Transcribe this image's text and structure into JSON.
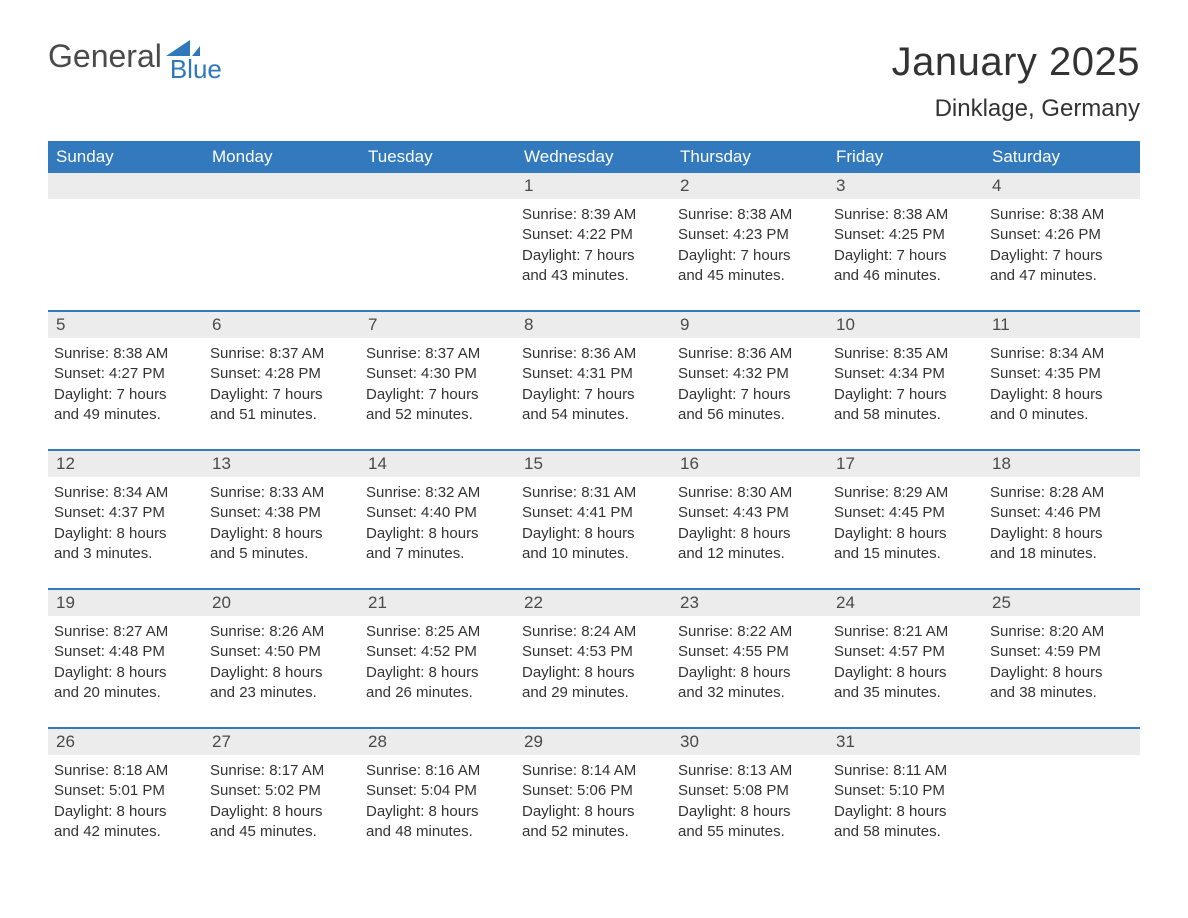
{
  "brand": {
    "word1": "General",
    "word2": "Blue",
    "sail_color": "#2f78bc"
  },
  "title": "January 2025",
  "location": "Dinklage, Germany",
  "colors": {
    "header_bg": "#3279bd",
    "header_text": "#ffffff",
    "daynum_bg": "#ececec",
    "body_text": "#333333",
    "page_bg": "#ffffff"
  },
  "layout": {
    "columns": 7,
    "rows": 5,
    "col_width_pct": 14.28
  },
  "weekdays": [
    "Sunday",
    "Monday",
    "Tuesday",
    "Wednesday",
    "Thursday",
    "Friday",
    "Saturday"
  ],
  "weeks": [
    [
      null,
      null,
      null,
      {
        "n": "1",
        "sunrise": "Sunrise: 8:39 AM",
        "sunset": "Sunset: 4:22 PM",
        "dl1": "Daylight: 7 hours",
        "dl2": "and 43 minutes."
      },
      {
        "n": "2",
        "sunrise": "Sunrise: 8:38 AM",
        "sunset": "Sunset: 4:23 PM",
        "dl1": "Daylight: 7 hours",
        "dl2": "and 45 minutes."
      },
      {
        "n": "3",
        "sunrise": "Sunrise: 8:38 AM",
        "sunset": "Sunset: 4:25 PM",
        "dl1": "Daylight: 7 hours",
        "dl2": "and 46 minutes."
      },
      {
        "n": "4",
        "sunrise": "Sunrise: 8:38 AM",
        "sunset": "Sunset: 4:26 PM",
        "dl1": "Daylight: 7 hours",
        "dl2": "and 47 minutes."
      }
    ],
    [
      {
        "n": "5",
        "sunrise": "Sunrise: 8:38 AM",
        "sunset": "Sunset: 4:27 PM",
        "dl1": "Daylight: 7 hours",
        "dl2": "and 49 minutes."
      },
      {
        "n": "6",
        "sunrise": "Sunrise: 8:37 AM",
        "sunset": "Sunset: 4:28 PM",
        "dl1": "Daylight: 7 hours",
        "dl2": "and 51 minutes."
      },
      {
        "n": "7",
        "sunrise": "Sunrise: 8:37 AM",
        "sunset": "Sunset: 4:30 PM",
        "dl1": "Daylight: 7 hours",
        "dl2": "and 52 minutes."
      },
      {
        "n": "8",
        "sunrise": "Sunrise: 8:36 AM",
        "sunset": "Sunset: 4:31 PM",
        "dl1": "Daylight: 7 hours",
        "dl2": "and 54 minutes."
      },
      {
        "n": "9",
        "sunrise": "Sunrise: 8:36 AM",
        "sunset": "Sunset: 4:32 PM",
        "dl1": "Daylight: 7 hours",
        "dl2": "and 56 minutes."
      },
      {
        "n": "10",
        "sunrise": "Sunrise: 8:35 AM",
        "sunset": "Sunset: 4:34 PM",
        "dl1": "Daylight: 7 hours",
        "dl2": "and 58 minutes."
      },
      {
        "n": "11",
        "sunrise": "Sunrise: 8:34 AM",
        "sunset": "Sunset: 4:35 PM",
        "dl1": "Daylight: 8 hours",
        "dl2": "and 0 minutes."
      }
    ],
    [
      {
        "n": "12",
        "sunrise": "Sunrise: 8:34 AM",
        "sunset": "Sunset: 4:37 PM",
        "dl1": "Daylight: 8 hours",
        "dl2": "and 3 minutes."
      },
      {
        "n": "13",
        "sunrise": "Sunrise: 8:33 AM",
        "sunset": "Sunset: 4:38 PM",
        "dl1": "Daylight: 8 hours",
        "dl2": "and 5 minutes."
      },
      {
        "n": "14",
        "sunrise": "Sunrise: 8:32 AM",
        "sunset": "Sunset: 4:40 PM",
        "dl1": "Daylight: 8 hours",
        "dl2": "and 7 minutes."
      },
      {
        "n": "15",
        "sunrise": "Sunrise: 8:31 AM",
        "sunset": "Sunset: 4:41 PM",
        "dl1": "Daylight: 8 hours",
        "dl2": "and 10 minutes."
      },
      {
        "n": "16",
        "sunrise": "Sunrise: 8:30 AM",
        "sunset": "Sunset: 4:43 PM",
        "dl1": "Daylight: 8 hours",
        "dl2": "and 12 minutes."
      },
      {
        "n": "17",
        "sunrise": "Sunrise: 8:29 AM",
        "sunset": "Sunset: 4:45 PM",
        "dl1": "Daylight: 8 hours",
        "dl2": "and 15 minutes."
      },
      {
        "n": "18",
        "sunrise": "Sunrise: 8:28 AM",
        "sunset": "Sunset: 4:46 PM",
        "dl1": "Daylight: 8 hours",
        "dl2": "and 18 minutes."
      }
    ],
    [
      {
        "n": "19",
        "sunrise": "Sunrise: 8:27 AM",
        "sunset": "Sunset: 4:48 PM",
        "dl1": "Daylight: 8 hours",
        "dl2": "and 20 minutes."
      },
      {
        "n": "20",
        "sunrise": "Sunrise: 8:26 AM",
        "sunset": "Sunset: 4:50 PM",
        "dl1": "Daylight: 8 hours",
        "dl2": "and 23 minutes."
      },
      {
        "n": "21",
        "sunrise": "Sunrise: 8:25 AM",
        "sunset": "Sunset: 4:52 PM",
        "dl1": "Daylight: 8 hours",
        "dl2": "and 26 minutes."
      },
      {
        "n": "22",
        "sunrise": "Sunrise: 8:24 AM",
        "sunset": "Sunset: 4:53 PM",
        "dl1": "Daylight: 8 hours",
        "dl2": "and 29 minutes."
      },
      {
        "n": "23",
        "sunrise": "Sunrise: 8:22 AM",
        "sunset": "Sunset: 4:55 PM",
        "dl1": "Daylight: 8 hours",
        "dl2": "and 32 minutes."
      },
      {
        "n": "24",
        "sunrise": "Sunrise: 8:21 AM",
        "sunset": "Sunset: 4:57 PM",
        "dl1": "Daylight: 8 hours",
        "dl2": "and 35 minutes."
      },
      {
        "n": "25",
        "sunrise": "Sunrise: 8:20 AM",
        "sunset": "Sunset: 4:59 PM",
        "dl1": "Daylight: 8 hours",
        "dl2": "and 38 minutes."
      }
    ],
    [
      {
        "n": "26",
        "sunrise": "Sunrise: 8:18 AM",
        "sunset": "Sunset: 5:01 PM",
        "dl1": "Daylight: 8 hours",
        "dl2": "and 42 minutes."
      },
      {
        "n": "27",
        "sunrise": "Sunrise: 8:17 AM",
        "sunset": "Sunset: 5:02 PM",
        "dl1": "Daylight: 8 hours",
        "dl2": "and 45 minutes."
      },
      {
        "n": "28",
        "sunrise": "Sunrise: 8:16 AM",
        "sunset": "Sunset: 5:04 PM",
        "dl1": "Daylight: 8 hours",
        "dl2": "and 48 minutes."
      },
      {
        "n": "29",
        "sunrise": "Sunrise: 8:14 AM",
        "sunset": "Sunset: 5:06 PM",
        "dl1": "Daylight: 8 hours",
        "dl2": "and 52 minutes."
      },
      {
        "n": "30",
        "sunrise": "Sunrise: 8:13 AM",
        "sunset": "Sunset: 5:08 PM",
        "dl1": "Daylight: 8 hours",
        "dl2": "and 55 minutes."
      },
      {
        "n": "31",
        "sunrise": "Sunrise: 8:11 AM",
        "sunset": "Sunset: 5:10 PM",
        "dl1": "Daylight: 8 hours",
        "dl2": "and 58 minutes."
      },
      null
    ]
  ]
}
